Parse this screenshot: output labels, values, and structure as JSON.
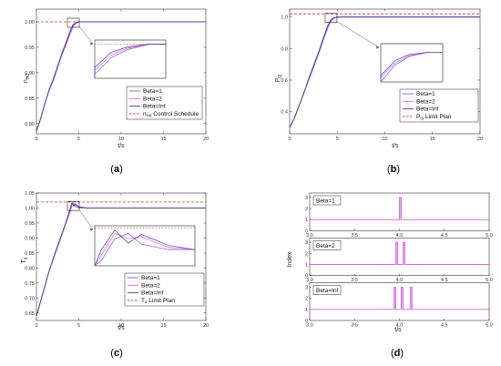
{
  "colors": {
    "beta1": "#7b5cd6",
    "beta2": "#e05ce0",
    "betaInf": "#4a3a8c",
    "limit": "#d03030",
    "axis": "#333333"
  },
  "chart_data": [
    {
      "id": "a",
      "type": "line",
      "caption": "a",
      "xlabel": "t/s",
      "ylabel": "n",
      "ylabel_sub": "H0",
      "xlim": [
        0,
        20
      ],
      "ylim": [
        0.78,
        1.025
      ],
      "xticks": [
        0,
        5,
        10,
        15,
        20
      ],
      "yticks": [
        0.8,
        0.85,
        0.9,
        0.95,
        1.0
      ],
      "ytick_labels": [
        "0.80",
        "0.85",
        "0.90",
        "0.95",
        "1.00"
      ],
      "limit_value": 1.0,
      "legend_position": "lower-right",
      "legend": [
        {
          "label": "Beta=1",
          "sub": ""
        },
        {
          "label": "Beta=2",
          "sub": ""
        },
        {
          "label": "Beta=Inf",
          "sub": ""
        },
        {
          "label": "n",
          "sub": "H0",
          "tail": " Control Schedule"
        }
      ],
      "series": [
        {
          "name": "Beta=1",
          "x": [
            0,
            0.5,
            1,
            1.5,
            2,
            2.5,
            3,
            3.5,
            4,
            4.3,
            4.6,
            5,
            6,
            10,
            20
          ],
          "y": [
            0.785,
            0.81,
            0.84,
            0.865,
            0.885,
            0.91,
            0.935,
            0.955,
            0.978,
            0.99,
            0.996,
            1.0,
            1.0,
            1.0,
            1.0
          ]
        },
        {
          "name": "Beta=2",
          "x": [
            0,
            0.5,
            1,
            1.5,
            2,
            2.5,
            3,
            3.5,
            4,
            4.3,
            4.6,
            5,
            6,
            10,
            20
          ],
          "y": [
            0.785,
            0.81,
            0.84,
            0.866,
            0.887,
            0.912,
            0.937,
            0.958,
            0.981,
            0.992,
            0.997,
            1.0,
            1.0,
            1.0,
            1.0
          ]
        },
        {
          "name": "Beta=Inf",
          "x": [
            0,
            0.5,
            1,
            1.5,
            2,
            2.5,
            3,
            3.5,
            4,
            4.3,
            4.6,
            5,
            6,
            10,
            20
          ],
          "y": [
            0.785,
            0.81,
            0.84,
            0.867,
            0.888,
            0.913,
            0.938,
            0.96,
            0.983,
            0.994,
            0.998,
            1.0,
            1.0,
            1.0,
            1.0
          ]
        }
      ]
    },
    {
      "id": "b",
      "type": "line",
      "caption": "b",
      "xlabel": "t/s",
      "ylabel": "P",
      "ylabel_sub": "t3",
      "xlim": [
        0,
        20
      ],
      "ylim": [
        0.26,
        1.05
      ],
      "xticks": [
        0,
        5,
        10,
        15,
        20
      ],
      "yticks": [
        0.4,
        0.6,
        0.8,
        1.0
      ],
      "ytick_labels": [
        "0.4",
        "0.6",
        "0.8",
        "1.0"
      ],
      "limit_value": 1.02,
      "legend_position": "lower-right",
      "legend": [
        {
          "label": "Beta=1",
          "sub": ""
        },
        {
          "label": "Beta=2",
          "sub": ""
        },
        {
          "label": "Beta=Inf",
          "sub": ""
        },
        {
          "label": "P",
          "sub": "t3",
          "tail": " Limit Plan"
        }
      ],
      "series": [
        {
          "name": "Beta=1",
          "x": [
            0,
            0.5,
            1,
            1.5,
            2,
            2.5,
            3,
            3.5,
            4,
            4.3,
            4.6,
            5,
            6,
            10,
            20
          ],
          "y": [
            0.3,
            0.36,
            0.44,
            0.52,
            0.6,
            0.68,
            0.76,
            0.85,
            0.93,
            0.97,
            0.99,
            1.0,
            1.0,
            1.0,
            1.0
          ]
        },
        {
          "name": "Beta=2",
          "x": [
            0,
            0.5,
            1,
            1.5,
            2,
            2.5,
            3,
            3.5,
            4,
            4.3,
            4.6,
            5,
            6,
            10,
            20
          ],
          "y": [
            0.3,
            0.36,
            0.44,
            0.52,
            0.605,
            0.685,
            0.765,
            0.855,
            0.94,
            0.975,
            0.992,
            1.0,
            1.0,
            1.0,
            1.0
          ]
        },
        {
          "name": "Beta=Inf",
          "x": [
            0,
            0.5,
            1,
            1.5,
            2,
            2.5,
            3,
            3.5,
            4,
            4.3,
            4.6,
            5,
            6,
            10,
            20
          ],
          "y": [
            0.3,
            0.36,
            0.44,
            0.52,
            0.61,
            0.69,
            0.77,
            0.86,
            0.945,
            0.98,
            0.995,
            1.0,
            1.0,
            1.0,
            1.0
          ]
        }
      ]
    },
    {
      "id": "c",
      "type": "line",
      "caption": "c",
      "xlabel": "t/s",
      "ylabel": "T",
      "ylabel_sub": "4",
      "xlim": [
        0,
        20
      ],
      "ylim": [
        0.625,
        1.05
      ],
      "xticks": [
        0,
        5,
        10,
        15,
        20
      ],
      "yticks": [
        0.65,
        0.7,
        0.75,
        0.8,
        0.85,
        0.9,
        0.95,
        1.0,
        1.05
      ],
      "ytick_labels": [
        "0.65",
        "0.70",
        "0.75",
        "0.80",
        "0.85",
        "0.90",
        "0.95",
        "1.00",
        "1.05"
      ],
      "limit_value": 1.02,
      "legend_position": "lower-right",
      "legend": [
        {
          "label": "Beta=1",
          "sub": ""
        },
        {
          "label": "Beta=2",
          "sub": ""
        },
        {
          "label": "Beta=Inf",
          "sub": ""
        },
        {
          "label": "T",
          "sub": "4",
          "tail": " Limit Plan"
        }
      ],
      "series": [
        {
          "name": "Beta=1",
          "x": [
            0,
            0.5,
            1,
            1.5,
            2,
            2.5,
            3,
            3.5,
            4,
            4.2,
            4.4,
            4.6,
            5,
            6,
            10,
            20
          ],
          "y": [
            0.64,
            0.69,
            0.74,
            0.79,
            0.83,
            0.87,
            0.91,
            0.95,
            0.99,
            1.01,
            1.015,
            1.005,
            1.0,
            1.0,
            1.0,
            1.0
          ]
        },
        {
          "name": "Beta=2",
          "x": [
            0,
            0.5,
            1,
            1.5,
            2,
            2.5,
            3,
            3.5,
            4,
            4.2,
            4.4,
            4.6,
            5,
            6,
            10,
            20
          ],
          "y": [
            0.64,
            0.69,
            0.74,
            0.79,
            0.832,
            0.872,
            0.912,
            0.952,
            0.995,
            1.015,
            1.01,
            1.012,
            1.002,
            1.0,
            1.0,
            1.0
          ]
        },
        {
          "name": "Beta=Inf",
          "x": [
            0,
            0.5,
            1,
            1.5,
            2,
            2.5,
            3,
            3.5,
            4,
            4.2,
            4.4,
            4.6,
            5,
            6,
            10,
            20
          ],
          "y": [
            0.64,
            0.69,
            0.74,
            0.79,
            0.834,
            0.874,
            0.914,
            0.954,
            1.0,
            1.018,
            1.006,
            1.014,
            1.004,
            1.0,
            1.0,
            1.0
          ]
        }
      ]
    },
    {
      "id": "d",
      "type": "line",
      "caption": "d",
      "xlabel": "t/s",
      "ylabel": "Index",
      "xlim": [
        3.0,
        5.0
      ],
      "xticks": [
        3.0,
        3.5,
        4.0,
        4.5,
        5.0
      ],
      "xtick_labels": [
        "3.0",
        "3.5",
        "4.0",
        "4.5",
        "5.0"
      ],
      "ylim": [
        0,
        3
      ],
      "yticks": [
        0,
        1,
        2,
        3
      ],
      "legend_position": "top-left",
      "subplots": [
        {
          "label": "Beta=1",
          "base": 1,
          "pulse_value": 3,
          "pulses": [
            [
              4.0,
              4.02
            ]
          ]
        },
        {
          "label": "Beta=2",
          "base": 1,
          "pulse_value": 3,
          "pulses": [
            [
              3.96,
              3.98
            ],
            [
              4.04,
              4.06
            ]
          ]
        },
        {
          "label": "Beta=Inf",
          "base": 1,
          "pulse_value": 3,
          "pulses": [
            [
              3.94,
              3.96
            ],
            [
              4.02,
              4.04
            ],
            [
              4.12,
              4.14
            ]
          ]
        }
      ]
    }
  ]
}
